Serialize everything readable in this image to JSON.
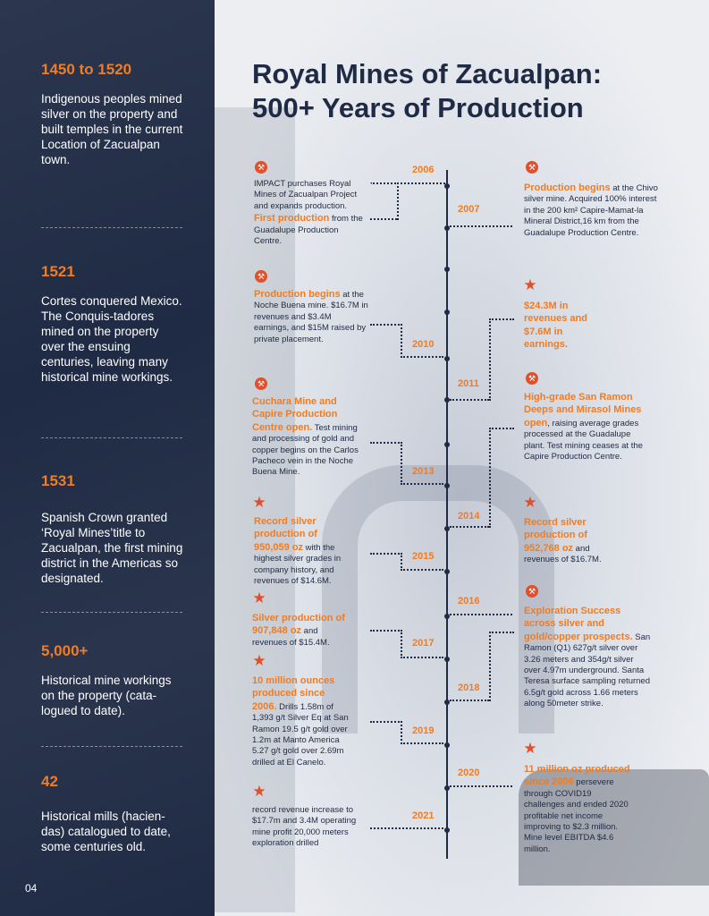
{
  "sidebar": {
    "blocks": [
      {
        "title": "1450 to 1520",
        "text": "Indigenous peoples mined silver on the property and built temples in the current Location of Zacualpan town."
      },
      {
        "title": "1521",
        "text": "Cortes conquered Mexico.  The Conquis-tadores mined on the property over the ensuing centuries, leaving many historical mine workings."
      },
      {
        "title": "1531",
        "text": "Spanish Crown granted ‘Royal Mines’title to Zacualpan, the first mining district in the Americas so designated."
      },
      {
        "title": "5,000+",
        "text": "Historical mine workings on the property (cata-logued to date)."
      },
      {
        "title": "42",
        "text": "Historical mills (hacien-das) catalogued to date, some centuries old."
      }
    ],
    "page_number": "04"
  },
  "title": {
    "line1": "Royal Mines of Zacualpan:",
    "line2": "500+ Years of Production"
  },
  "timeline": {
    "years": [
      "2006",
      "2007",
      "2010",
      "2011",
      "2013",
      "2014",
      "2015",
      "2016",
      "2017",
      "2018",
      "2019",
      "2020",
      "2021"
    ],
    "left_events": [
      {
        "icon": "pickaxe-icon",
        "pre": "IMPACT purchases Royal Mines of Zacualpan Project and expands production. ",
        "highlight": "First production",
        "post": " from the Guadalupe Production Centre."
      },
      {
        "icon": "pickaxe-icon",
        "highlight": "Production begins",
        "post": " at the Noche Buena mine. $16.7M in revenues and $3.4M earnings, and $15M raised by private placement."
      },
      {
        "icon": "pickaxe-icon",
        "highlight": "Cuchara Mine and Capire Production Centre open.",
        "post": " Test mining and processing of gold and copper begins on the Carlos Pacheco vein in the Noche Buena Mine."
      },
      {
        "icon": "star-icon",
        "highlight": "Record silver production of 950,059 oz",
        "post": " with the highest silver grades in company history, and revenues of $14.6M."
      },
      {
        "icon": "star-icon",
        "highlight": "Silver production of 907,848 oz",
        "post": " and revenues of $15.4M."
      },
      {
        "icon": "star-icon",
        "highlight": "10 million ounces produced since 2006.",
        "post": " Drills 1.58m of 1,393 g/t Silver Eq at San Ramon 19.5 g/t gold over 1.2m at Manto America 5.27 g/t gold over 2.69m drilled at El Canelo."
      },
      {
        "icon": "star-icon",
        "highlight": "",
        "post": "record revenue increase to $17.7m and 3.4M operating mine profit 20,000 meters exploration drilled"
      }
    ],
    "right_events": [
      {
        "icon": "pickaxe-icon",
        "highlight": "Production begins",
        "post": " at the Chivo silver mine. Acquired 100% interest in the 200 km² Capire-Mamat-la Mineral District,16 km from the Guadalupe Production Centre."
      },
      {
        "icon": "star-icon",
        "highlight": "$24.3M in revenues and $7.6M in earnings.",
        "post": ""
      },
      {
        "icon": "pickaxe-icon",
        "highlight": "High-grade San Ramon Deeps and Mirasol Mines open",
        "post": ", raising average grades processed at the Guadalupe plant. Test mining ceases at the Capire Production Centre."
      },
      {
        "icon": "star-icon",
        "highlight": "Record silver production of 952,768 oz",
        "post": " and revenues of $16.7M."
      },
      {
        "icon": "pickaxe-icon",
        "highlight": "Exploration Success across silver and gold/copper prospects.",
        "post": " San Ramon (Q1) 627g/t silver over 3.26 meters and 354g/t silver over 4.97m underground. Santa Teresa surface sampling returned 6.5g/t gold across 1.66 meters along 50meter strike."
      },
      {
        "icon": "star-icon",
        "highlight": "11 million oz produced since 2006",
        "post": " persevere through COVID19 challenges and ended 2020 profitable net income improving to $2.3 million. Mine level EBITDA $4.6 million."
      }
    ]
  },
  "colors": {
    "navy": "#1f2a44",
    "orange": "#f07c23",
    "icon_red": "#e0502a"
  }
}
